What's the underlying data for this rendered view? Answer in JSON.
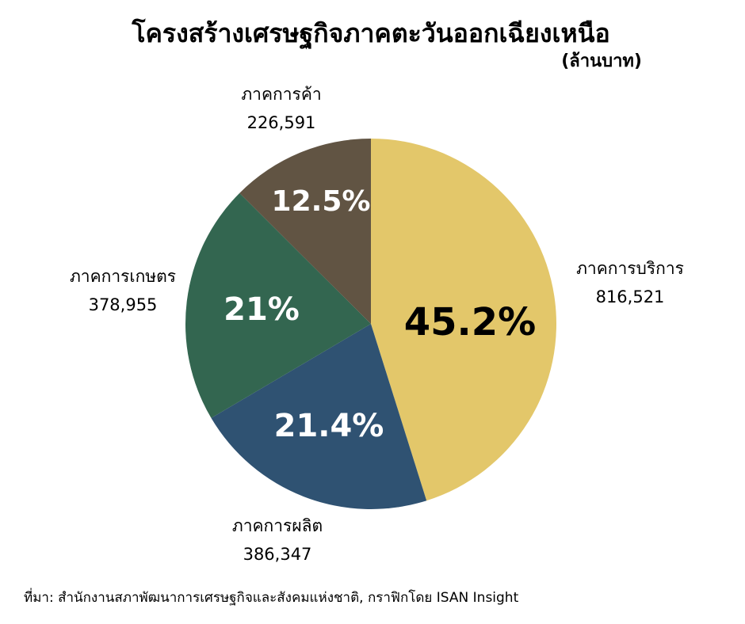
{
  "chart_data": {
    "type": "pie",
    "title": "โครงสร้างเศรษฐกิจภาคตะวันออกเฉียงเหนือ",
    "subtitle": "(ล้านบาท)",
    "categories": [
      "ภาคการบริการ",
      "ภาคการผลิต",
      "ภาคการเกษตร",
      "ภาคการค้า"
    ],
    "values": [
      816521,
      386347,
      378955,
      226591
    ],
    "value_labels": [
      "816,521",
      "386,347",
      "378,955",
      "226,591"
    ],
    "percentages": [
      {
        "value": 45.2,
        "label": "45.2%"
      },
      {
        "value": 21.4,
        "label": "21.4%"
      },
      {
        "value": 21,
        "label": "21%"
      },
      {
        "value": 12.5,
        "label": "12.5%"
      }
    ],
    "colors": [
      "#e3c76a",
      "#2f5272",
      "#336650",
      "#615443"
    ],
    "percentage_label_colors": [
      "#000000",
      "#ffffff",
      "#ffffff",
      "#ffffff"
    ],
    "source": "ที่มา: สำนักงานสภาพัฒนาการเศรษฐกิจและสังคมแห่งชาติ, กราฟิกโดย ISAN Insight"
  }
}
